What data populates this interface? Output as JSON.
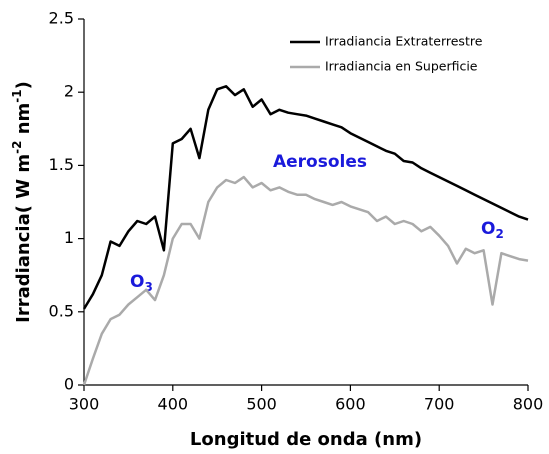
{
  "chart_data": {
    "type": "line",
    "xlabel": "Longitud de onda (nm)",
    "ylabel": [
      "Irradiancia( W m",
      "-2",
      " nm",
      "-1",
      ")"
    ],
    "x": [
      300,
      310,
      320,
      330,
      340,
      350,
      360,
      370,
      380,
      390,
      400,
      410,
      420,
      430,
      440,
      450,
      460,
      470,
      480,
      490,
      500,
      510,
      520,
      530,
      540,
      550,
      560,
      570,
      580,
      590,
      600,
      610,
      620,
      630,
      640,
      650,
      660,
      670,
      680,
      690,
      700,
      710,
      720,
      730,
      740,
      750,
      760,
      770,
      780,
      790,
      800
    ],
    "series": [
      {
        "name": "Irradiancia Extraterrestre",
        "color": "#000000",
        "values": [
          0.52,
          0.62,
          0.75,
          0.98,
          0.95,
          1.05,
          1.12,
          1.1,
          1.15,
          0.92,
          1.65,
          1.68,
          1.75,
          1.55,
          1.88,
          2.02,
          2.04,
          1.98,
          2.02,
          1.9,
          1.95,
          1.85,
          1.88,
          1.86,
          1.85,
          1.84,
          1.82,
          1.8,
          1.78,
          1.76,
          1.72,
          1.69,
          1.66,
          1.63,
          1.6,
          1.58,
          1.53,
          1.52,
          1.48,
          1.45,
          1.42,
          1.39,
          1.36,
          1.33,
          1.3,
          1.27,
          1.24,
          1.21,
          1.18,
          1.15,
          1.13
        ]
      },
      {
        "name": "Irradiancia en Superficie",
        "color": "#aaaaaa",
        "values": [
          0.0,
          0.18,
          0.35,
          0.45,
          0.48,
          0.55,
          0.6,
          0.65,
          0.58,
          0.75,
          1.0,
          1.1,
          1.1,
          1.0,
          1.25,
          1.35,
          1.4,
          1.38,
          1.42,
          1.35,
          1.38,
          1.33,
          1.35,
          1.32,
          1.3,
          1.3,
          1.27,
          1.25,
          1.23,
          1.25,
          1.22,
          1.2,
          1.18,
          1.12,
          1.15,
          1.1,
          1.12,
          1.1,
          1.05,
          1.08,
          1.02,
          0.95,
          0.83,
          0.93,
          0.9,
          0.92,
          0.55,
          0.9,
          0.88,
          0.86,
          0.85
        ]
      }
    ],
    "annotations": [
      {
        "text": "Aerosoles"
      },
      {
        "text": "O",
        "sub": "3"
      },
      {
        "text": "O",
        "sub": "2"
      }
    ],
    "annotation_color": "#1a1adb",
    "xlim": [
      300,
      800
    ],
    "xticks": [
      300,
      400,
      500,
      600,
      700,
      800
    ],
    "ylim": [
      0,
      2.5
    ],
    "yticks": [
      0,
      0.5,
      1,
      1.5,
      2,
      2.5
    ],
    "legend": "upper right"
  }
}
